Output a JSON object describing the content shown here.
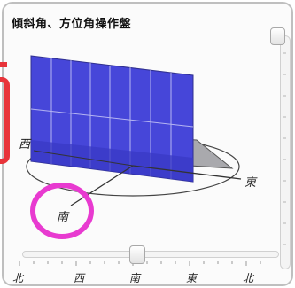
{
  "panel": {
    "title": "傾斜角、方位角操作盤"
  },
  "scene": {
    "panel_color": "#4545d8",
    "shadow_color": "#a7a7a7",
    "highlight_color": "#e83ad0",
    "callout_color": "#e8343a",
    "direction_labels": {
      "west": "西",
      "south": "南",
      "east": "東"
    }
  },
  "tilt_slider": {
    "orientation": "vertical"
  },
  "azimuth_slider": {
    "orientation": "horizontal",
    "labels": [
      "北",
      "西",
      "南",
      "東",
      "北"
    ],
    "selected": "南"
  }
}
